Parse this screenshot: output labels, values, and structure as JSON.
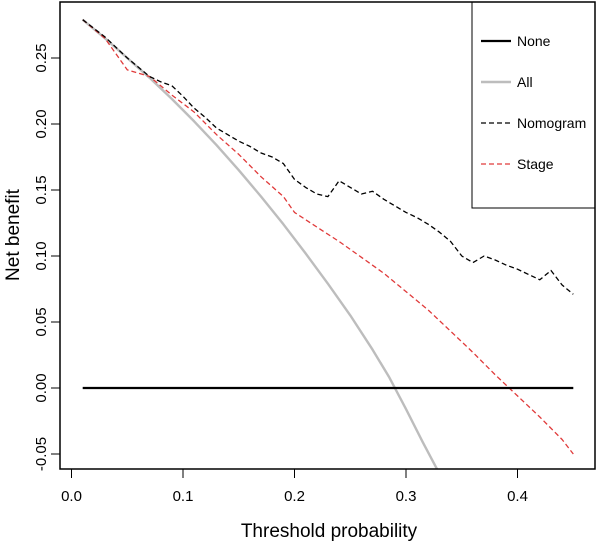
{
  "chart_data": {
    "type": "line",
    "title": "",
    "xlabel": "Threshold probability",
    "ylabel": "Net benefit",
    "xlim": [
      0.01,
      0.45
    ],
    "ylim": [
      -0.065,
      0.285
    ],
    "xticks": [
      "0.0",
      "0.1",
      "0.2",
      "0.3",
      "0.4"
    ],
    "xtick_values": [
      0.0,
      0.1,
      0.2,
      0.3,
      0.4
    ],
    "yticks": [
      "-0.05",
      "0.00",
      "0.05",
      "0.10",
      "0.15",
      "0.20",
      "0.25"
    ],
    "ytick_values": [
      -0.05,
      0.0,
      0.05,
      0.1,
      0.15,
      0.2,
      0.25
    ],
    "grid": false,
    "legend_position": "top-right",
    "series": [
      {
        "name": "None",
        "color": "#000000",
        "style": "solid",
        "x": [
          0.01,
          0.45
        ],
        "y": [
          0.0,
          0.0
        ]
      },
      {
        "name": "All",
        "color": "#bdbdbd",
        "style": "solid",
        "x": [
          0.01,
          0.03,
          0.05,
          0.07,
          0.09,
          0.11,
          0.13,
          0.15,
          0.17,
          0.19,
          0.21,
          0.23,
          0.25,
          0.27,
          0.285,
          0.3,
          0.315,
          0.33
        ],
        "y": [
          0.279,
          0.265,
          0.25,
          0.235,
          0.219,
          0.202,
          0.184,
          0.165,
          0.145,
          0.124,
          0.102,
          0.079,
          0.055,
          0.029,
          0.008,
          -0.016,
          -0.041,
          -0.065
        ]
      },
      {
        "name": "Nomogram",
        "color": "#000000",
        "style": "dashed",
        "x": [
          0.01,
          0.03,
          0.05,
          0.07,
          0.08,
          0.09,
          0.1,
          0.11,
          0.12,
          0.13,
          0.14,
          0.15,
          0.16,
          0.17,
          0.18,
          0.19,
          0.2,
          0.21,
          0.22,
          0.23,
          0.24,
          0.25,
          0.26,
          0.27,
          0.28,
          0.29,
          0.3,
          0.31,
          0.32,
          0.33,
          0.34,
          0.35,
          0.36,
          0.37,
          0.38,
          0.39,
          0.4,
          0.41,
          0.42,
          0.43,
          0.44,
          0.45
        ],
        "y": [
          0.279,
          0.266,
          0.25,
          0.236,
          0.232,
          0.229,
          0.221,
          0.212,
          0.205,
          0.197,
          0.192,
          0.187,
          0.183,
          0.178,
          0.175,
          0.17,
          0.158,
          0.152,
          0.147,
          0.145,
          0.157,
          0.152,
          0.147,
          0.149,
          0.143,
          0.138,
          0.133,
          0.129,
          0.124,
          0.118,
          0.111,
          0.1,
          0.095,
          0.1,
          0.097,
          0.093,
          0.09,
          0.086,
          0.082,
          0.089,
          0.078,
          0.071
        ]
      },
      {
        "name": "Stage",
        "color": "#e03a3a",
        "style": "dashed",
        "x": [
          0.01,
          0.03,
          0.05,
          0.07,
          0.09,
          0.11,
          0.13,
          0.15,
          0.17,
          0.19,
          0.2,
          0.22,
          0.24,
          0.26,
          0.28,
          0.3,
          0.32,
          0.34,
          0.36,
          0.38,
          0.4,
          0.42,
          0.44,
          0.45
        ],
        "y": [
          0.279,
          0.265,
          0.241,
          0.236,
          0.222,
          0.209,
          0.192,
          0.177,
          0.16,
          0.145,
          0.133,
          0.122,
          0.111,
          0.099,
          0.087,
          0.073,
          0.059,
          0.043,
          0.027,
          0.01,
          -0.006,
          -0.022,
          -0.039,
          -0.05
        ]
      }
    ]
  }
}
